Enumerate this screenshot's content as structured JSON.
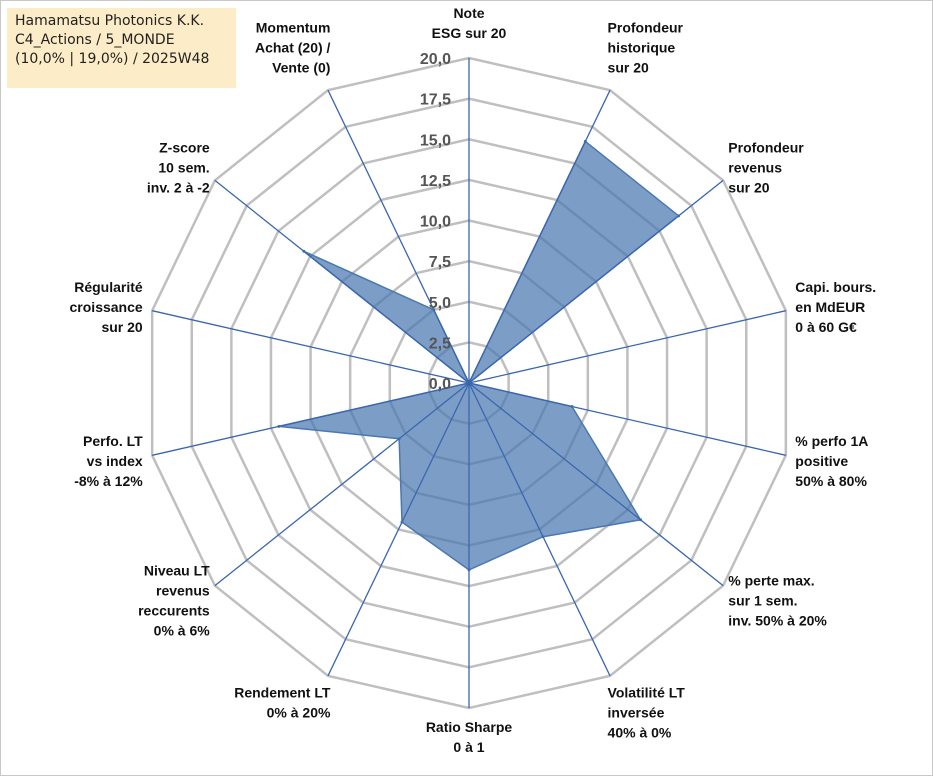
{
  "title_box": {
    "line1": "Hamamatsu Photonics K.K.",
    "line2": "C4_Actions / 5_MONDE",
    "line3": "(10,0% | 19,0%) / 2025W48"
  },
  "colors": {
    "fill": "#4a78b0",
    "axis": "#3a66b0",
    "grid": "#bfbfbf"
  },
  "chart_data": {
    "type": "radar",
    "rmin": 0,
    "rmax": 20,
    "grid_step": 2.5,
    "tick_labels": [
      "0,0",
      "2,5",
      "5,0",
      "7,5",
      "10,0",
      "12,5",
      "15,0",
      "17,5",
      "20,0"
    ],
    "axes": [
      [
        "Note",
        "ESG sur 20"
      ],
      [
        "Profondeur",
        "historique",
        "sur 20"
      ],
      [
        "Profondeur",
        "revenus",
        "sur 20"
      ],
      [
        "Capi. bours.",
        "en MdEUR",
        "0 à 60 G€"
      ],
      [
        "% perfo 1A",
        "positive",
        "50% à 80%"
      ],
      [
        "% perte max.",
        "sur 1 sem.",
        "inv. 50% à 20%"
      ],
      [
        "Volatilité LT",
        "inversée",
        "40% à 0%"
      ],
      [
        "Ratio Sharpe",
        "0 à 1"
      ],
      [
        "Rendement LT",
        "0% à 20%"
      ],
      [
        "Niveau LT",
        "revenus",
        "reccurents",
        "0% à 6%"
      ],
      [
        "Perfo. LT",
        "vs index",
        "-8% à 12%"
      ],
      [
        "Régularité",
        "croissance",
        "sur 20"
      ],
      [
        "Z-score",
        "10 sem.",
        "inv. 2 à -2"
      ],
      [
        "Momentum",
        "Achat (20) /",
        "Vente (0)"
      ]
    ],
    "values": [
      0,
      16.5,
      16.5,
      0,
      6.5,
      13.5,
      10.5,
      11.5,
      9.5,
      5.5,
      12,
      0,
      13,
      5
    ],
    "grid": true,
    "legend": "none"
  }
}
